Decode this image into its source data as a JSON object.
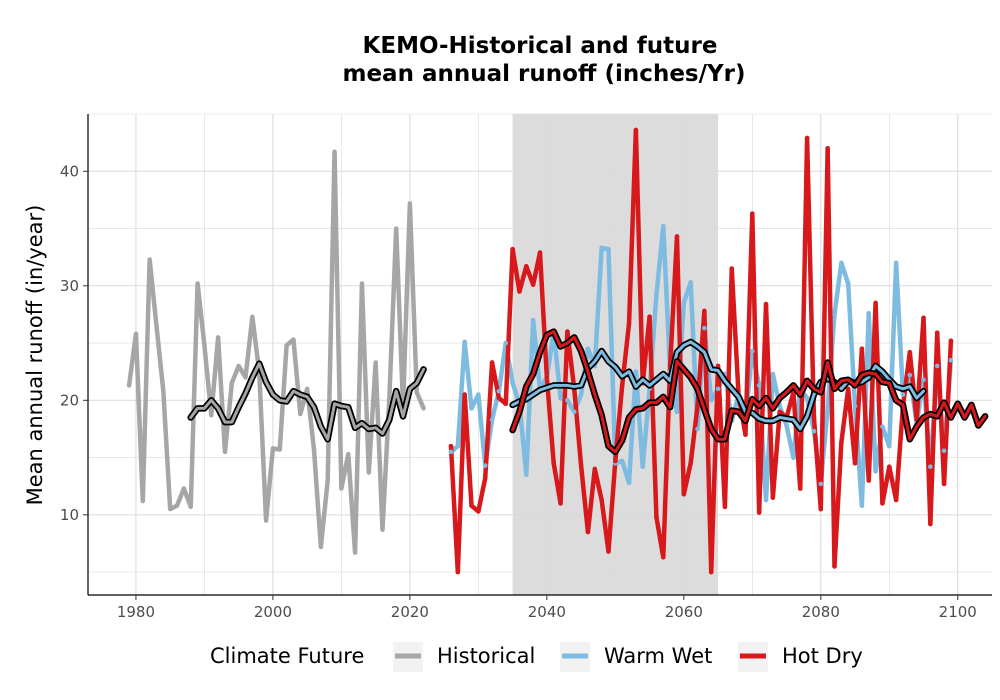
{
  "chart_data": {
    "type": "line",
    "title_lines": [
      "KEMO-Historical and future",
      "mean annual runoff (inches/Yr)"
    ],
    "xlabel": "",
    "ylabel": "Mean annual runoff (in/year)",
    "xlim": [
      1973,
      2105
    ],
    "ylim": [
      3,
      45
    ],
    "x_ticks": [
      1980,
      2000,
      2020,
      2040,
      2060,
      2080,
      2100
    ],
    "y_ticks": [
      10,
      20,
      30,
      40
    ],
    "grid": true,
    "shaded_period": [
      2035,
      2065
    ],
    "shade_color": "#dcdcdc",
    "legend": {
      "title": "Climate Future",
      "position": "bottom",
      "entries": [
        {
          "label": "Historical",
          "color": "#a6a6a6"
        },
        {
          "label": "Warm Wet",
          "color": "#7dbbe1"
        },
        {
          "label": "Hot Dry",
          "color": "#d7191c"
        }
      ]
    },
    "series": [
      {
        "name": "Historical",
        "color": "#a6a6a6",
        "x_start": 1979,
        "values": [
          21.3,
          25.8,
          11.2,
          32.3,
          26.5,
          20.8,
          10.5,
          10.8,
          12.3,
          10.7,
          30.2,
          24.8,
          18.7,
          25.5,
          15.5,
          21.5,
          23.0,
          22.0,
          27.3,
          22.5,
          9.5,
          15.8,
          15.7,
          24.8,
          25.3,
          18.8,
          21.0,
          15.7,
          7.2,
          13.0,
          41.7,
          12.3,
          15.3,
          6.7,
          30.2,
          13.7,
          23.3,
          8.7,
          20.2,
          35.0,
          19.5,
          37.2,
          20.7,
          19.3
        ]
      },
      {
        "name": "Historical smoothed",
        "color": "#a6a6a6",
        "x_start": 1988,
        "values": [
          18.5,
          19.3,
          19.3,
          20.0,
          19.3,
          18.1,
          18.1,
          19.4,
          20.6,
          22.0,
          23.2,
          21.6,
          20.5,
          20.0,
          19.9,
          20.8,
          20.5,
          20.3,
          19.4,
          17.7,
          16.6,
          19.7,
          19.5,
          19.4,
          17.6,
          18.0,
          17.5,
          17.6,
          17.1,
          18.3,
          20.8,
          18.6,
          21.0,
          21.5,
          22.7
        ]
      },
      {
        "name": "Warm Wet",
        "color": "#7dbbe1",
        "x_start": 2026,
        "values": [
          15.5,
          16.0,
          25.1,
          19.3,
          20.5,
          14.3,
          18.3,
          20.8,
          25.0,
          21.5,
          19.7,
          13.5,
          27.0,
          21.0,
          22.0,
          26.0,
          20.2,
          20.0,
          19.0,
          20.5,
          24.5,
          23.0,
          33.3,
          33.2,
          14.5,
          14.7,
          12.8,
          22.5,
          14.2,
          21.0,
          29.2,
          35.2,
          22.5,
          19.0,
          28.5,
          30.3,
          17.5,
          26.3,
          20.0,
          21.0,
          22.3,
          18.2,
          20.5,
          18.3,
          24.3,
          21.3,
          11.3,
          22.3,
          19.5,
          17.8,
          15.0,
          21.0,
          20.2,
          17.3,
          12.7,
          19.3,
          27.5,
          32.0,
          30.2,
          19.5,
          10.8,
          27.6,
          13.8,
          17.7,
          16.0,
          32.0,
          20.5,
          22.2,
          18.0,
          21.8,
          14.2,
          23.0,
          15.6,
          23.5
        ]
      },
      {
        "name": "Warm Wet smoothed",
        "color": "#7dbbe1",
        "x_start": 2035,
        "values": [
          19.6,
          19.9,
          20.1,
          20.5,
          20.9,
          21.1,
          21.3,
          21.3,
          21.3,
          21.2,
          21.3,
          22.8,
          23.4,
          24.3,
          23.4,
          22.9,
          22.1,
          22.5,
          21.2,
          21.8,
          21.3,
          21.8,
          22.3,
          21.7,
          24.2,
          24.8,
          25.1,
          24.7,
          24.2,
          22.7,
          22.6,
          21.7,
          21.0,
          20.3,
          19.0,
          18.9,
          18.4,
          18.2,
          18.2,
          18.5,
          18.4,
          18.3,
          17.5,
          18.6,
          20.5,
          21.6,
          21.9,
          21.6,
          21.0,
          21.7,
          21.5,
          21.6,
          22.0,
          23.0,
          22.5,
          21.8,
          21.2,
          21.0,
          21.2,
          20.2,
          20.8
        ]
      },
      {
        "name": "Hot Dry",
        "color": "#d7191c",
        "x_start": 2026,
        "values": [
          16.0,
          5.0,
          20.5,
          10.8,
          10.3,
          13.2,
          23.3,
          20.2,
          19.7,
          33.2,
          29.5,
          31.7,
          30.1,
          32.9,
          22.0,
          14.5,
          11.0,
          26.0,
          21.0,
          14.3,
          8.5,
          14.0,
          11.3,
          6.8,
          14.7,
          21.3,
          26.7,
          43.6,
          21.5,
          27.3,
          9.8,
          6.3,
          23.0,
          34.3,
          11.8,
          14.5,
          19.5,
          27.8,
          5.0,
          23.0,
          10.7,
          31.5,
          20.4,
          17.0,
          36.3,
          10.2,
          28.4,
          11.5,
          19.0,
          18.5,
          20.7,
          12.3,
          42.9,
          18.5,
          10.5,
          42.0,
          5.5,
          16.3,
          21.0,
          14.5,
          24.5,
          13.0,
          28.5,
          11.0,
          14.2,
          11.3,
          19.5,
          24.2,
          18.3,
          27.2,
          9.2,
          25.9,
          12.7,
          25.2
        ]
      },
      {
        "name": "Hot Dry smoothed",
        "color": "#d7191c",
        "x_start": 2035,
        "values": [
          17.4,
          19.0,
          21.2,
          22.3,
          24.2,
          25.7,
          26.0,
          24.7,
          25.0,
          25.5,
          24.3,
          22.5,
          20.5,
          18.7,
          16.0,
          15.5,
          16.5,
          18.5,
          19.2,
          19.3,
          19.8,
          19.8,
          20.3,
          19.4,
          23.4,
          22.7,
          22.0,
          21.0,
          19.2,
          17.5,
          16.6,
          16.6,
          19.1,
          19.0,
          18.2,
          20.1,
          19.5,
          20.2,
          19.3,
          20.2,
          20.7,
          21.3,
          20.5,
          21.7,
          21.0,
          20.7,
          23.3,
          21.0,
          21.7,
          21.8,
          21.3,
          22.2,
          22.4,
          22.3,
          21.6,
          21.5,
          20.0,
          19.6,
          16.6,
          17.7,
          18.5,
          18.8,
          18.6,
          19.8,
          18.5,
          19.7,
          18.5,
          19.6,
          17.8,
          18.6
        ]
      }
    ]
  }
}
